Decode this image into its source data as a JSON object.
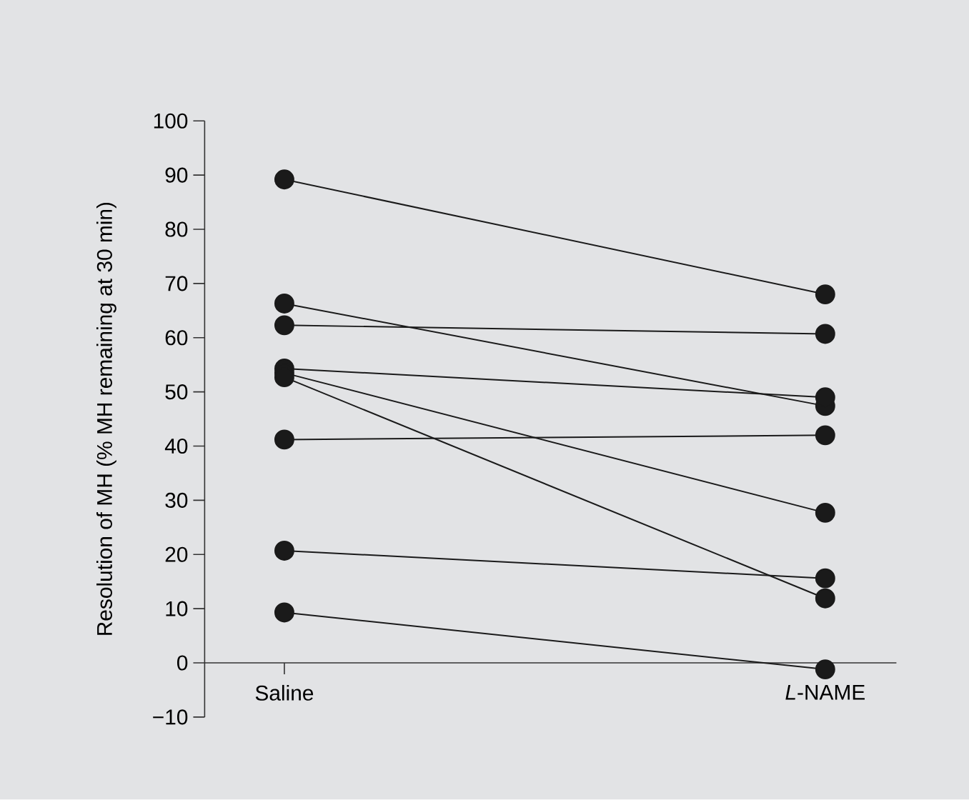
{
  "chart_data": {
    "type": "line",
    "categories": [
      "Saline",
      "*L*-NAME"
    ],
    "ylabel": "Resolution of MH (% MH remaining at 30 min)",
    "ylim": [
      -10,
      100
    ],
    "yticks": [
      {
        "value": -10,
        "label": "−10"
      },
      0,
      10,
      20,
      30,
      40,
      50,
      60,
      70,
      80,
      90,
      100
    ],
    "marker": "circle",
    "line_style": "solid",
    "series": [
      {
        "color": "#1a1a1a",
        "values": [
          89.2,
          68.0
        ]
      },
      {
        "color": "#1a1a1a",
        "values": [
          66.3,
          47.4
        ]
      },
      {
        "color": "#1a1a1a",
        "values": [
          62.3,
          60.7
        ]
      },
      {
        "color": "#1a1a1a",
        "values": [
          54.3,
          49.0
        ]
      },
      {
        "color": "#1a1a1a",
        "values": [
          53.5,
          27.7
        ]
      },
      {
        "color": "#1a1a1a",
        "values": [
          52.7,
          11.9
        ]
      },
      {
        "color": "#1a1a1a",
        "values": [
          41.2,
          42.0
        ]
      },
      {
        "color": "#1a1a1a",
        "values": [
          20.7,
          15.6
        ]
      },
      {
        "color": "#1a1a1a",
        "values": [
          9.3,
          -1.2
        ]
      }
    ]
  }
}
